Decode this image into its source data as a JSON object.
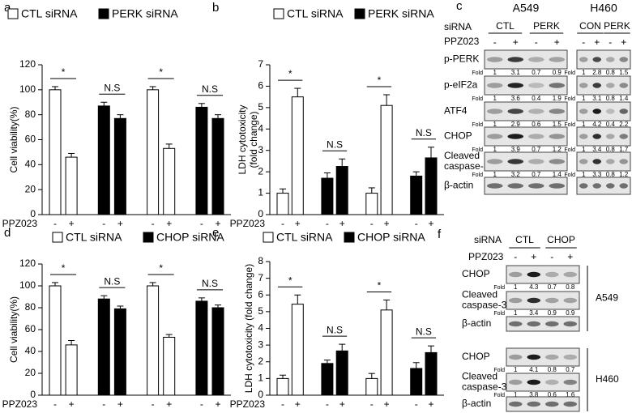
{
  "chart_data": [
    {
      "type": "bar",
      "panel": "a",
      "ylabel": "Cell viability(%)",
      "xlabel": "PPZ023",
      "categories": [
        "-",
        "+",
        "-",
        "+",
        "-",
        "+",
        "-",
        "+"
      ],
      "series": [
        {
          "name": "CTL siRNA",
          "color": "#ffffff",
          "values": [
            100,
            46,
            null,
            null,
            100,
            53,
            null,
            null
          ],
          "errors": [
            2.5,
            3,
            null,
            null,
            2.5,
            3.5,
            null,
            null
          ]
        },
        {
          "name": "PERK siRNA",
          "color": "#000000",
          "values": [
            null,
            null,
            87,
            77,
            null,
            null,
            86,
            77
          ],
          "errors": [
            null,
            null,
            3,
            3,
            null,
            null,
            3,
            3
          ]
        }
      ],
      "annotations": [
        "*",
        "N.S",
        "*",
        "N.S"
      ],
      "ylim": [
        0,
        120
      ],
      "yticks": [
        0,
        20,
        40,
        60,
        80,
        100,
        120
      ]
    },
    {
      "type": "bar",
      "panel": "b",
      "ylabel": [
        "LDH  cytotoxicity",
        "(fold change)"
      ],
      "xlabel": "PPZ023",
      "categories": [
        "-",
        "+",
        "-",
        "+",
        "-",
        "+",
        "-",
        "+"
      ],
      "series": [
        {
          "name": "CTL siRNA",
          "color": "#ffffff",
          "values": [
            1,
            5.5,
            null,
            null,
            1,
            5.1,
            null,
            null
          ],
          "errors": [
            0.2,
            0.4,
            null,
            null,
            0.25,
            0.5,
            null,
            null
          ]
        },
        {
          "name": "PERK siRNA",
          "color": "#000000",
          "values": [
            null,
            null,
            1.7,
            2.25,
            null,
            null,
            1.8,
            2.65
          ],
          "errors": [
            null,
            null,
            0.25,
            0.35,
            null,
            null,
            0.2,
            0.5
          ]
        }
      ],
      "annotations": [
        "*",
        "N.S",
        "*",
        "N.S"
      ],
      "ylim": [
        0,
        7
      ],
      "yticks": [
        0,
        1,
        2,
        3,
        4,
        5,
        6,
        7
      ]
    },
    {
      "type": "bar",
      "panel": "d",
      "ylabel": "Cell viability(%)",
      "xlabel": "PPZ023",
      "categories": [
        "-",
        "+",
        "-",
        "+",
        "-",
        "+",
        "-",
        "+"
      ],
      "series": [
        {
          "name": "CTL siRNA",
          "color": "#ffffff",
          "values": [
            100,
            46,
            null,
            null,
            100,
            53,
            null,
            null
          ],
          "errors": [
            3,
            4,
            null,
            null,
            3,
            2.5,
            null,
            null
          ]
        },
        {
          "name": "CHOP siRNA",
          "color": "#000000",
          "values": [
            null,
            null,
            88,
            79,
            null,
            null,
            86,
            80
          ],
          "errors": [
            null,
            null,
            3,
            2.5,
            null,
            null,
            3,
            2.5
          ]
        }
      ],
      "annotations": [
        "*",
        "N.S",
        "*",
        "N.S"
      ],
      "ylim": [
        0,
        120
      ],
      "yticks": [
        0,
        20,
        40,
        60,
        80,
        100,
        120
      ]
    },
    {
      "type": "bar",
      "panel": "e",
      "ylabel": "LDH  cytotoxicity (fold change)",
      "xlabel": "PPZ023",
      "categories": [
        "-",
        "+",
        "-",
        "+",
        "-",
        "+",
        "-",
        "+"
      ],
      "series": [
        {
          "name": "CTL siRNA",
          "color": "#ffffff",
          "values": [
            1,
            5.45,
            null,
            null,
            1,
            5.1,
            null,
            null
          ],
          "errors": [
            0.2,
            0.55,
            null,
            null,
            0.3,
            0.6,
            null,
            null
          ]
        },
        {
          "name": "CHOP siRNA",
          "color": "#000000",
          "values": [
            null,
            null,
            1.9,
            2.65,
            null,
            null,
            1.6,
            2.55
          ],
          "errors": [
            null,
            null,
            0.2,
            0.4,
            null,
            null,
            0.35,
            0.4
          ]
        }
      ],
      "annotations": [
        "*",
        "N.S",
        "*",
        "N.S"
      ],
      "ylim": [
        0,
        8
      ],
      "yticks": [
        0,
        1,
        2,
        3,
        4,
        5,
        6,
        7,
        8
      ]
    }
  ],
  "blot_c": {
    "panel": "c",
    "siRNA_label": "siRNA",
    "treatment_label": "PPZ023",
    "fold_label": "Fold",
    "cell_lines": [
      {
        "name": "A549",
        "groups": [
          "CTL",
          "PERK"
        ],
        "signs": [
          "-",
          "+",
          "-",
          "+"
        ],
        "rows": [
          {
            "label": [
              "p-PERK"
            ],
            "folds": [
              "1",
              "3.1",
              "0.7",
              "0.9"
            ]
          },
          {
            "label": [
              "p-eIF2a"
            ],
            "folds": [
              "1",
              "3.6",
              "0.4",
              "1.9"
            ]
          },
          {
            "label": [
              "ATF4"
            ],
            "folds": [
              "1",
              "2.9",
              "0.6",
              "1.5"
            ]
          },
          {
            "label": [
              "CHOP"
            ],
            "folds": [
              "1",
              "3.9",
              "0.7",
              "1.2"
            ]
          },
          {
            "label": [
              "Cleaved",
              "caspase-3"
            ],
            "folds": [
              "1",
              "3.2",
              "0.7",
              "1.4"
            ]
          },
          {
            "label": [
              "β-actin"
            ]
          }
        ]
      },
      {
        "name": "H460",
        "groups": [
          "CON",
          "PERK"
        ],
        "signs": [
          "-",
          "+",
          "-",
          "+"
        ],
        "rows": [
          {
            "folds": [
              "1",
              "2.8",
              "0.8",
              "1.5"
            ]
          },
          {
            "folds": [
              "1",
              "3.1",
              "0.8",
              "1.4"
            ]
          },
          {
            "folds": [
              "1",
              "4.2",
              "0.4",
              "2.2"
            ]
          },
          {
            "folds": [
              "1",
              "3.4",
              "0.8",
              "1.7"
            ]
          },
          {
            "folds": [
              "1",
              "3.3",
              "0.8",
              "1.2"
            ]
          },
          {}
        ]
      }
    ]
  },
  "blot_f": {
    "panel": "f",
    "siRNA_label": "siRNA",
    "groups": [
      "CTL",
      "CHOP"
    ],
    "treatment_label": "PPZ023",
    "signs": [
      "-",
      "+",
      "-",
      "+"
    ],
    "fold_label": "Fold",
    "cell_lines": [
      {
        "name": "A549",
        "rows": [
          {
            "label": [
              "CHOP"
            ],
            "folds": [
              "1",
              "4.3",
              "0.7",
              "0.8"
            ]
          },
          {
            "label": [
              "Cleaved",
              "caspase-3"
            ],
            "folds": [
              "1",
              "3.4",
              "0.9",
              "0.9"
            ]
          },
          {
            "label": [
              "β-actin"
            ]
          }
        ]
      },
      {
        "name": "H460",
        "rows": [
          {
            "label": [
              "CHOP"
            ],
            "folds": [
              "1",
              "4.1",
              "0.8",
              "0.7"
            ]
          },
          {
            "label": [
              "Cleaved",
              "caspase-3"
            ],
            "folds": [
              "1",
              "3.8",
              "0.6",
              "1.6"
            ]
          },
          {
            "label": [
              "β-actin"
            ]
          }
        ]
      }
    ]
  }
}
